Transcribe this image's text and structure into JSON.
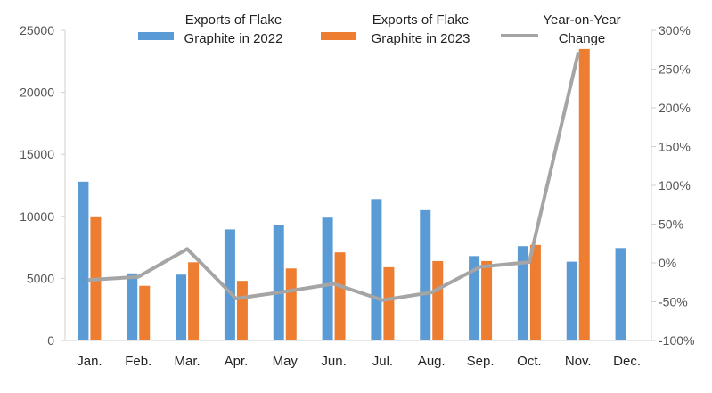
{
  "chart_data": {
    "type": "bar",
    "categories": [
      "Jan.",
      "Feb.",
      "Mar.",
      "Apr.",
      "May",
      "Jun.",
      "Jul.",
      "Aug.",
      "Sep.",
      "Oct.",
      "Nov.",
      "Dec."
    ],
    "series": [
      {
        "name": "Exports of Flake Graphite in 2022",
        "type": "bar",
        "axis": "left",
        "color": "#5B9BD5",
        "values": [
          12800,
          5400,
          5300,
          8950,
          9300,
          9900,
          11400,
          10500,
          6800,
          7600,
          6350,
          7450
        ]
      },
      {
        "name": "Exports of Flake Graphite in 2023",
        "type": "bar",
        "axis": "left",
        "color": "#ED7D31",
        "values": [
          10000,
          4400,
          6300,
          4800,
          5800,
          7100,
          5900,
          6400,
          6400,
          7700,
          23500,
          null
        ]
      },
      {
        "name": "Year-on-Year Change",
        "type": "line",
        "axis": "right",
        "color": "#A5A5A5",
        "values": [
          -22,
          -18,
          18,
          -46,
          -37,
          -27,
          -48,
          -38,
          -5,
          1,
          270,
          null
        ]
      }
    ],
    "legend": {
      "placement": "top",
      "items": [
        {
          "lines": [
            "Exports of Flake",
            "Graphite in 2022"
          ],
          "color": "#5B9BD5",
          "kind": "bar"
        },
        {
          "lines": [
            "Exports of Flake",
            "Graphite in 2023"
          ],
          "color": "#ED7D31",
          "kind": "bar"
        },
        {
          "lines": [
            "Year-on-Year",
            "Change"
          ],
          "color": "#A5A5A5",
          "kind": "line"
        }
      ]
    },
    "y_left": {
      "min": 0,
      "max": 25000,
      "ticks": [
        0,
        5000,
        10000,
        15000,
        20000,
        25000
      ],
      "tick_labels": [
        "0",
        "5000",
        "10000",
        "15000",
        "20000",
        "25000"
      ]
    },
    "y_right": {
      "min": -100,
      "max": 300,
      "ticks": [
        -100,
        -50,
        0,
        50,
        100,
        150,
        200,
        250,
        300
      ],
      "tick_labels": [
        "-100%",
        "-50%",
        "0%",
        "50%",
        "100%",
        "150%",
        "200%",
        "250%",
        "300%"
      ]
    },
    "title": "",
    "xlabel": "",
    "ylabel": "",
    "grid": false
  }
}
